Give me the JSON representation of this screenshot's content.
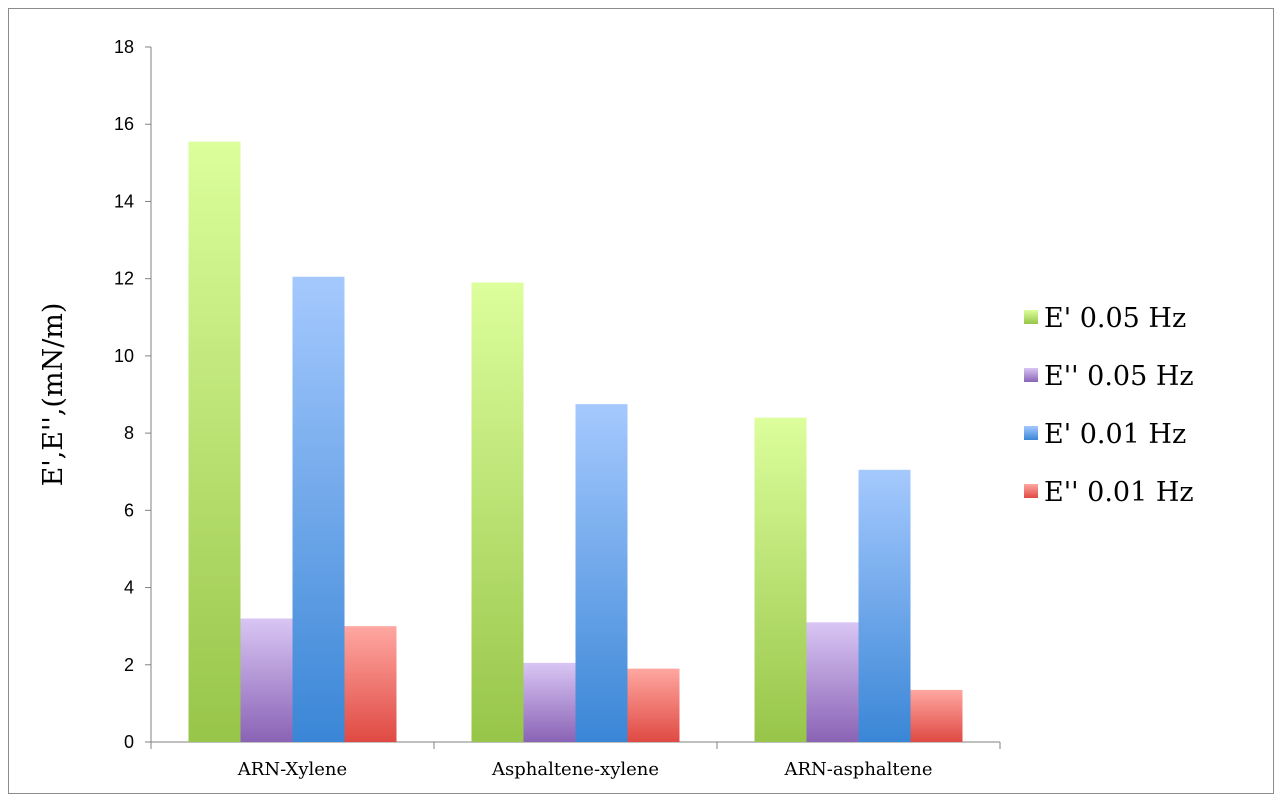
{
  "chart_data": {
    "type": "bar",
    "title": "",
    "xlabel": "",
    "ylabel": "E',E'',(mN/m)",
    "ylim": [
      0,
      18
    ],
    "yticks": [
      0,
      2,
      4,
      6,
      8,
      10,
      12,
      14,
      16,
      18
    ],
    "grid": false,
    "legend_position": "right",
    "categories": [
      "ARN-Xylene",
      "Asphaltene-xylene",
      "ARN-asphaltene"
    ],
    "series": [
      {
        "name": "E' 0.05 Hz",
        "values": [
          15.55,
          11.9,
          8.4
        ],
        "color_top": "#dcfe9c",
        "color_bottom": "#97c549"
      },
      {
        "name": "E'' 0.05 Hz",
        "values": [
          3.2,
          2.05,
          3.1
        ],
        "color_top": "#d9c6f4",
        "color_bottom": "#8a63b5"
      },
      {
        "name": "E' 0.01 Hz",
        "values": [
          12.05,
          8.75,
          7.05
        ],
        "color_top": "#a5c9fe",
        "color_bottom": "#3a86d6"
      },
      {
        "name": "E'' 0.01 Hz",
        "values": [
          3.0,
          1.9,
          1.35
        ],
        "color_top": "#ffa7a1",
        "color_bottom": "#df4a43"
      }
    ]
  }
}
